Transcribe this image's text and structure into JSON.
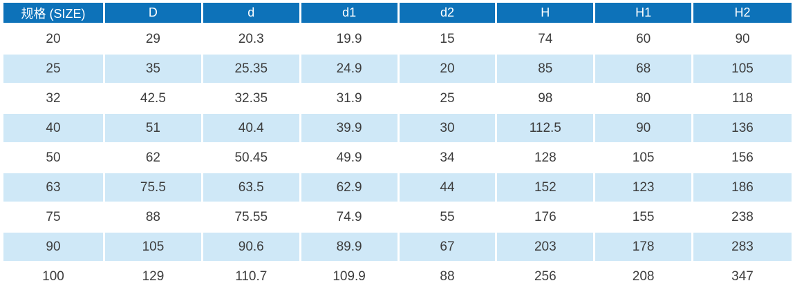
{
  "table": {
    "columns": [
      "规格 (SIZE)",
      "D",
      "d",
      "d1",
      "d2",
      "H",
      "H1",
      "H2"
    ],
    "rows": [
      [
        "20",
        "29",
        "20.3",
        "19.9",
        "15",
        "74",
        "60",
        "90"
      ],
      [
        "25",
        "35",
        "25.35",
        "24.9",
        "20",
        "85",
        "68",
        "105"
      ],
      [
        "32",
        "42.5",
        "32.35",
        "31.9",
        "25",
        "98",
        "80",
        "118"
      ],
      [
        "40",
        "51",
        "40.4",
        "39.9",
        "30",
        "112.5",
        "90",
        "136"
      ],
      [
        "50",
        "62",
        "50.45",
        "49.9",
        "34",
        "128",
        "105",
        "156"
      ],
      [
        "63",
        "75.5",
        "63.5",
        "62.9",
        "44",
        "152",
        "123",
        "186"
      ],
      [
        "75",
        "88",
        "75.55",
        "74.9",
        "55",
        "176",
        "155",
        "238"
      ],
      [
        "90",
        "105",
        "90.6",
        "89.9",
        "67",
        "203",
        "178",
        "283"
      ],
      [
        "100",
        "129",
        "110.7",
        "109.9",
        "88",
        "256",
        "208",
        "347"
      ]
    ],
    "colors": {
      "header_bg": "#0d72b9",
      "header_text": "#ffffff",
      "row_bg": "#ffffff",
      "row_alt_bg": "#cfe8f7",
      "cell_text": "#3d3d3d",
      "separator": "#ffffff"
    }
  }
}
